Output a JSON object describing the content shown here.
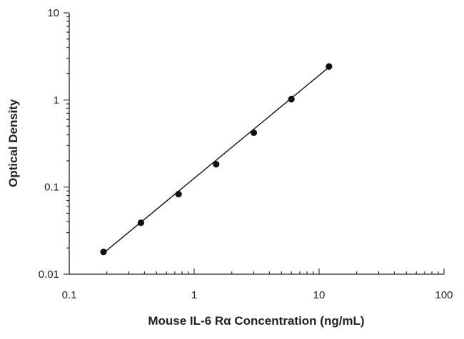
{
  "chart_data": {
    "type": "scatter",
    "title": "",
    "xlabel": "Mouse IL-6 Rα Concentration (ng/mL)",
    "ylabel": "Optical Density",
    "xscale": "log",
    "yscale": "log",
    "xlim": [
      0.1,
      100
    ],
    "ylim": [
      0.01,
      10
    ],
    "xticks": [
      0.1,
      1,
      10,
      100
    ],
    "xtick_labels": [
      "0.1",
      "1",
      "10",
      "100"
    ],
    "yticks": [
      0.01,
      0.1,
      1,
      10
    ],
    "ytick_labels": [
      "0.01",
      "0.1",
      "1",
      "10"
    ],
    "grid": false,
    "legend": "none",
    "series": [
      {
        "x": [
          0.188,
          0.375,
          0.75,
          1.5,
          3,
          6,
          12
        ],
        "y": [
          0.018,
          0.039,
          0.083,
          0.183,
          0.42,
          1.02,
          2.42
        ]
      }
    ],
    "fit_line": {
      "x": [
        0.188,
        12
      ],
      "y": [
        0.0175,
        2.38
      ]
    },
    "colors": {
      "points": "#111111",
      "axes": "#222222"
    }
  }
}
